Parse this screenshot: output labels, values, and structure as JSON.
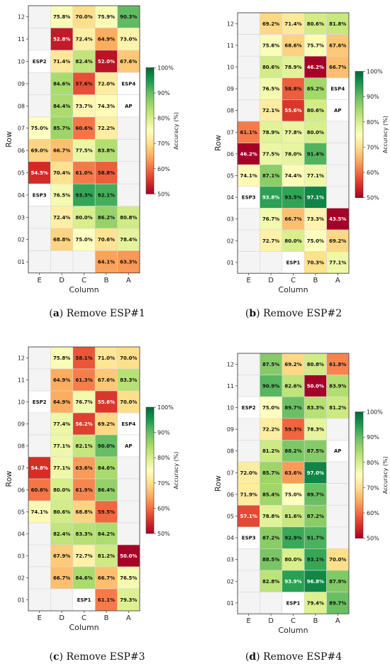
{
  "chart_data": [
    {
      "type": "heatmap",
      "caption_letter": "(a)",
      "caption_text": "Remove ESP#1",
      "xlabel": "Column",
      "ylabel": "Row",
      "columns": [
        "E",
        "D",
        "C",
        "B",
        "A"
      ],
      "rows": [
        "12",
        "11",
        "10",
        "09",
        "08",
        "07",
        "06",
        "05",
        "04",
        "03",
        "02",
        "01"
      ],
      "colorbar": {
        "label": "Accuracy (%)",
        "min": 50,
        "max": 100,
        "ticks": [
          "50%",
          "60%",
          "70%",
          "80%",
          "90%",
          "100%"
        ]
      },
      "cells": [
        [
          null,
          75.8,
          70.0,
          75.9,
          90.3
        ],
        [
          null,
          52.8,
          72.4,
          64.9,
          73.0
        ],
        [
          "ESP2",
          71.4,
          82.4,
          52.0,
          67.6
        ],
        [
          null,
          84.6,
          57.6,
          72.0,
          "ESP4"
        ],
        [
          null,
          84.4,
          73.7,
          74.3,
          "AP"
        ],
        [
          75.0,
          85.7,
          60.6,
          72.2,
          null
        ],
        [
          69.0,
          66.7,
          77.5,
          83.8,
          null
        ],
        [
          54.5,
          70.4,
          61.0,
          58.8,
          null
        ],
        [
          "ESP3",
          76.5,
          93.3,
          92.1,
          null
        ],
        [
          null,
          72.4,
          80.0,
          86.2,
          80.8
        ],
        [
          null,
          68.8,
          75.0,
          70.6,
          78.4
        ],
        [
          null,
          null,
          null,
          64.1,
          63.3
        ]
      ]
    },
    {
      "type": "heatmap",
      "caption_letter": "(b)",
      "caption_text": "Remove ESP#2",
      "xlabel": "Column",
      "ylabel": "Row",
      "columns": [
        "E",
        "D",
        "C",
        "B",
        "A"
      ],
      "rows": [
        "12",
        "11",
        "10",
        "09",
        "08",
        "07",
        "06",
        "05",
        "04",
        "03",
        "02",
        "01"
      ],
      "colorbar": {
        "label": "Accuracy (%)",
        "min": 50,
        "max": 100,
        "ticks": [
          "50%",
          "60%",
          "70%",
          "80%",
          "90%",
          "100%"
        ]
      },
      "cells": [
        [
          null,
          69.2,
          71.4,
          80.6,
          81.8
        ],
        [
          null,
          75.6,
          68.6,
          75.7,
          67.6
        ],
        [
          null,
          80.6,
          78.9,
          46.2,
          66.7
        ],
        [
          null,
          76.5,
          58.8,
          85.2,
          "ESP4"
        ],
        [
          null,
          72.1,
          55.6,
          80.6,
          "AP"
        ],
        [
          61.1,
          78.9,
          77.8,
          80.0,
          null
        ],
        [
          46.2,
          77.5,
          78.0,
          91.4,
          null
        ],
        [
          74.1,
          87.1,
          74.4,
          77.1,
          null
        ],
        [
          "ESP3",
          93.8,
          93.5,
          97.1,
          null
        ],
        [
          null,
          76.7,
          66.7,
          73.3,
          43.5
        ],
        [
          null,
          72.7,
          80.0,
          75.0,
          69.2
        ],
        [
          null,
          null,
          "ESP1",
          70.3,
          77.1
        ]
      ]
    },
    {
      "type": "heatmap",
      "caption_letter": "(c)",
      "caption_text": "Remove ESP#3",
      "xlabel": "Column",
      "ylabel": "Row",
      "columns": [
        "E",
        "D",
        "C",
        "B",
        "A"
      ],
      "rows": [
        "12",
        "11",
        "10",
        "09",
        "08",
        "07",
        "06",
        "05",
        "04",
        "03",
        "02",
        "01"
      ],
      "colorbar": {
        "label": "Accuracy (%)",
        "min": 50,
        "max": 100,
        "ticks": [
          "50%",
          "60%",
          "70%",
          "80%",
          "90%",
          "100%"
        ]
      },
      "cells": [
        [
          null,
          75.8,
          58.1,
          71.0,
          70.0
        ],
        [
          null,
          64.9,
          61.3,
          67.6,
          83.3
        ],
        [
          "ESP2",
          64.9,
          76.7,
          55.6,
          70.0
        ],
        [
          null,
          77.4,
          56.2,
          69.2,
          "ESP4"
        ],
        [
          null,
          77.1,
          82.1,
          90.0,
          "AP"
        ],
        [
          54.8,
          77.1,
          63.6,
          84.6,
          null
        ],
        [
          60.6,
          80.0,
          61.9,
          86.4,
          null
        ],
        [
          74.1,
          80.6,
          68.8,
          59.5,
          null
        ],
        [
          null,
          82.4,
          83.3,
          84.2,
          null
        ],
        [
          null,
          67.9,
          72.7,
          81.2,
          50.0
        ],
        [
          null,
          66.7,
          84.6,
          66.7,
          76.5
        ],
        [
          null,
          null,
          "ESP1",
          61.1,
          79.3
        ]
      ]
    },
    {
      "type": "heatmap",
      "caption_letter": "(d)",
      "caption_text": "Remove ESP#4",
      "xlabel": "Column",
      "ylabel": "Row",
      "columns": [
        "E",
        "D",
        "C",
        "B",
        "A"
      ],
      "rows": [
        "12",
        "11",
        "10",
        "09",
        "08",
        "07",
        "06",
        "05",
        "04",
        "03",
        "02",
        "01"
      ],
      "colorbar": {
        "label": "Accuracy (%)",
        "min": 50,
        "max": 100,
        "ticks": [
          "50%",
          "60%",
          "70%",
          "80%",
          "90%",
          "100%"
        ]
      },
      "cells": [
        [
          null,
          87.5,
          69.2,
          80.8,
          61.8
        ],
        [
          null,
          90.9,
          82.6,
          50.0,
          83.9
        ],
        [
          "ESP2",
          75.0,
          89.7,
          83.3,
          81.2
        ],
        [
          null,
          72.2,
          59.3,
          78.3,
          null
        ],
        [
          null,
          81.2,
          88.2,
          87.5,
          "AP"
        ],
        [
          72.0,
          85.7,
          63.6,
          97.0,
          null
        ],
        [
          71.9,
          85.4,
          75.0,
          89.7,
          null
        ],
        [
          57.1,
          78.8,
          81.6,
          87.2,
          null
        ],
        [
          "ESP3",
          87.2,
          92.9,
          91.7,
          null
        ],
        [
          null,
          88.5,
          80.0,
          93.1,
          70.0
        ],
        [
          null,
          82.8,
          93.9,
          96.8,
          87.9
        ],
        [
          null,
          null,
          "ESP1",
          79.4,
          89.7
        ]
      ]
    }
  ]
}
